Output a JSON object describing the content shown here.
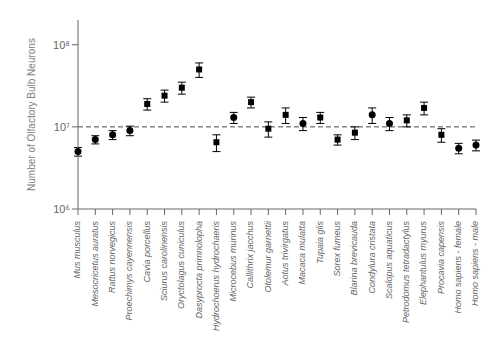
{
  "chart_data": {
    "type": "scatter",
    "ylabel": "Number of Olfactory Bulb Neurons",
    "categories": [
      "Mus musculus",
      "Mesocricetus auratus",
      "Rattus norvegicus",
      "Proechimys cayennensis",
      "Cavia porcellus",
      "Sciurus carolinensis",
      "Oryctolagus cuniculus",
      "Dasyprocta primnolopha",
      "Hydrochoerus hydrochaeris",
      "Microcebus murinus",
      "Callithrix jacchus",
      "Otolemur garnettii",
      "Aotus trivirgatus",
      "Macaca mulatta",
      "Tupaia glis",
      "Sorex fumeus",
      "Blarina brevicauda",
      "Condylura cristata",
      "Scalopus aquaticus",
      "Petrodomus tetradactylus",
      "Elephantulus myurus",
      "Procavia capensis",
      "Homo sapiens - female",
      "Homo sapiens - male"
    ],
    "values": [
      5000000,
      7000000,
      8000000,
      9000000,
      19000000,
      24000000,
      30000000,
      50000000,
      6500000,
      13000000,
      20000000,
      9500000,
      14000000,
      11000000,
      13000000,
      7000000,
      8500000,
      14000000,
      11000000,
      12000000,
      17000000,
      8000000,
      5500000,
      6000000
    ],
    "error_lo": [
      600000,
      800000,
      1000000,
      1200000,
      3000000,
      4000000,
      5000000,
      10000000,
      1500000,
      2000000,
      3000000,
      2000000,
      3000000,
      2000000,
      2000000,
      1000000,
      1500000,
      3000000,
      2000000,
      2000000,
      3000000,
      1500000,
      800000,
      900000
    ],
    "error_hi": [
      600000,
      800000,
      1000000,
      1200000,
      3000000,
      4000000,
      5000000,
      10000000,
      1500000,
      2000000,
      3000000,
      2000000,
      3000000,
      2000000,
      2000000,
      1000000,
      1500000,
      3000000,
      2000000,
      2000000,
      3000000,
      1500000,
      800000,
      900000
    ],
    "markers": [
      "circle",
      "circle",
      "circle",
      "circle",
      "square",
      "square",
      "square",
      "square",
      "square",
      "circle",
      "square",
      "square",
      "square",
      "circle",
      "square",
      "square",
      "square",
      "circle",
      "circle",
      "square",
      "square",
      "square",
      "circle",
      "circle"
    ],
    "color": "black",
    "log": "y",
    "ylim": [
      1000000,
      200000000
    ],
    "yticks": [
      {
        "value": 1000000,
        "label": "10⁶"
      },
      {
        "value": 10000000,
        "label": "10⁷"
      },
      {
        "value": 100000000,
        "label": "10⁸"
      }
    ],
    "reference_line": {
      "y": 10000000,
      "line_style": "dashed"
    }
  }
}
